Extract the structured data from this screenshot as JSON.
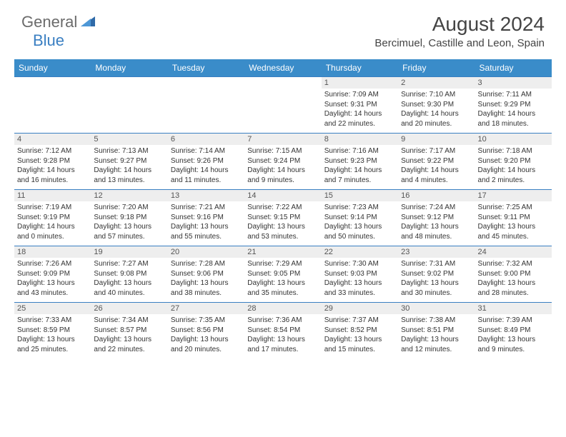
{
  "logo": {
    "text1": "General",
    "text2": "Blue"
  },
  "title": "August 2024",
  "location": "Bercimuel, Castille and Leon, Spain",
  "colors": {
    "header_bg": "#3a8cc9",
    "header_text": "#ffffff",
    "daynum_bg": "#eeeeee",
    "border": "#3a7fc2",
    "logo_gray": "#6b6b6b",
    "logo_blue": "#3a7fc2",
    "page_bg": "#ffffff"
  },
  "days_of_week": [
    "Sunday",
    "Monday",
    "Tuesday",
    "Wednesday",
    "Thursday",
    "Friday",
    "Saturday"
  ],
  "weeks": [
    [
      {
        "n": "",
        "sunrise": "",
        "sunset": "",
        "daylight1": "",
        "daylight2": "",
        "empty": true
      },
      {
        "n": "",
        "sunrise": "",
        "sunset": "",
        "daylight1": "",
        "daylight2": "",
        "empty": true
      },
      {
        "n": "",
        "sunrise": "",
        "sunset": "",
        "daylight1": "",
        "daylight2": "",
        "empty": true
      },
      {
        "n": "",
        "sunrise": "",
        "sunset": "",
        "daylight1": "",
        "daylight2": "",
        "empty": true
      },
      {
        "n": "1",
        "sunrise": "Sunrise: 7:09 AM",
        "sunset": "Sunset: 9:31 PM",
        "daylight1": "Daylight: 14 hours",
        "daylight2": "and 22 minutes."
      },
      {
        "n": "2",
        "sunrise": "Sunrise: 7:10 AM",
        "sunset": "Sunset: 9:30 PM",
        "daylight1": "Daylight: 14 hours",
        "daylight2": "and 20 minutes."
      },
      {
        "n": "3",
        "sunrise": "Sunrise: 7:11 AM",
        "sunset": "Sunset: 9:29 PM",
        "daylight1": "Daylight: 14 hours",
        "daylight2": "and 18 minutes."
      }
    ],
    [
      {
        "n": "4",
        "sunrise": "Sunrise: 7:12 AM",
        "sunset": "Sunset: 9:28 PM",
        "daylight1": "Daylight: 14 hours",
        "daylight2": "and 16 minutes."
      },
      {
        "n": "5",
        "sunrise": "Sunrise: 7:13 AM",
        "sunset": "Sunset: 9:27 PM",
        "daylight1": "Daylight: 14 hours",
        "daylight2": "and 13 minutes."
      },
      {
        "n": "6",
        "sunrise": "Sunrise: 7:14 AM",
        "sunset": "Sunset: 9:26 PM",
        "daylight1": "Daylight: 14 hours",
        "daylight2": "and 11 minutes."
      },
      {
        "n": "7",
        "sunrise": "Sunrise: 7:15 AM",
        "sunset": "Sunset: 9:24 PM",
        "daylight1": "Daylight: 14 hours",
        "daylight2": "and 9 minutes."
      },
      {
        "n": "8",
        "sunrise": "Sunrise: 7:16 AM",
        "sunset": "Sunset: 9:23 PM",
        "daylight1": "Daylight: 14 hours",
        "daylight2": "and 7 minutes."
      },
      {
        "n": "9",
        "sunrise": "Sunrise: 7:17 AM",
        "sunset": "Sunset: 9:22 PM",
        "daylight1": "Daylight: 14 hours",
        "daylight2": "and 4 minutes."
      },
      {
        "n": "10",
        "sunrise": "Sunrise: 7:18 AM",
        "sunset": "Sunset: 9:20 PM",
        "daylight1": "Daylight: 14 hours",
        "daylight2": "and 2 minutes."
      }
    ],
    [
      {
        "n": "11",
        "sunrise": "Sunrise: 7:19 AM",
        "sunset": "Sunset: 9:19 PM",
        "daylight1": "Daylight: 14 hours",
        "daylight2": "and 0 minutes."
      },
      {
        "n": "12",
        "sunrise": "Sunrise: 7:20 AM",
        "sunset": "Sunset: 9:18 PM",
        "daylight1": "Daylight: 13 hours",
        "daylight2": "and 57 minutes."
      },
      {
        "n": "13",
        "sunrise": "Sunrise: 7:21 AM",
        "sunset": "Sunset: 9:16 PM",
        "daylight1": "Daylight: 13 hours",
        "daylight2": "and 55 minutes."
      },
      {
        "n": "14",
        "sunrise": "Sunrise: 7:22 AM",
        "sunset": "Sunset: 9:15 PM",
        "daylight1": "Daylight: 13 hours",
        "daylight2": "and 53 minutes."
      },
      {
        "n": "15",
        "sunrise": "Sunrise: 7:23 AM",
        "sunset": "Sunset: 9:14 PM",
        "daylight1": "Daylight: 13 hours",
        "daylight2": "and 50 minutes."
      },
      {
        "n": "16",
        "sunrise": "Sunrise: 7:24 AM",
        "sunset": "Sunset: 9:12 PM",
        "daylight1": "Daylight: 13 hours",
        "daylight2": "and 48 minutes."
      },
      {
        "n": "17",
        "sunrise": "Sunrise: 7:25 AM",
        "sunset": "Sunset: 9:11 PM",
        "daylight1": "Daylight: 13 hours",
        "daylight2": "and 45 minutes."
      }
    ],
    [
      {
        "n": "18",
        "sunrise": "Sunrise: 7:26 AM",
        "sunset": "Sunset: 9:09 PM",
        "daylight1": "Daylight: 13 hours",
        "daylight2": "and 43 minutes."
      },
      {
        "n": "19",
        "sunrise": "Sunrise: 7:27 AM",
        "sunset": "Sunset: 9:08 PM",
        "daylight1": "Daylight: 13 hours",
        "daylight2": "and 40 minutes."
      },
      {
        "n": "20",
        "sunrise": "Sunrise: 7:28 AM",
        "sunset": "Sunset: 9:06 PM",
        "daylight1": "Daylight: 13 hours",
        "daylight2": "and 38 minutes."
      },
      {
        "n": "21",
        "sunrise": "Sunrise: 7:29 AM",
        "sunset": "Sunset: 9:05 PM",
        "daylight1": "Daylight: 13 hours",
        "daylight2": "and 35 minutes."
      },
      {
        "n": "22",
        "sunrise": "Sunrise: 7:30 AM",
        "sunset": "Sunset: 9:03 PM",
        "daylight1": "Daylight: 13 hours",
        "daylight2": "and 33 minutes."
      },
      {
        "n": "23",
        "sunrise": "Sunrise: 7:31 AM",
        "sunset": "Sunset: 9:02 PM",
        "daylight1": "Daylight: 13 hours",
        "daylight2": "and 30 minutes."
      },
      {
        "n": "24",
        "sunrise": "Sunrise: 7:32 AM",
        "sunset": "Sunset: 9:00 PM",
        "daylight1": "Daylight: 13 hours",
        "daylight2": "and 28 minutes."
      }
    ],
    [
      {
        "n": "25",
        "sunrise": "Sunrise: 7:33 AM",
        "sunset": "Sunset: 8:59 PM",
        "daylight1": "Daylight: 13 hours",
        "daylight2": "and 25 minutes."
      },
      {
        "n": "26",
        "sunrise": "Sunrise: 7:34 AM",
        "sunset": "Sunset: 8:57 PM",
        "daylight1": "Daylight: 13 hours",
        "daylight2": "and 22 minutes."
      },
      {
        "n": "27",
        "sunrise": "Sunrise: 7:35 AM",
        "sunset": "Sunset: 8:56 PM",
        "daylight1": "Daylight: 13 hours",
        "daylight2": "and 20 minutes."
      },
      {
        "n": "28",
        "sunrise": "Sunrise: 7:36 AM",
        "sunset": "Sunset: 8:54 PM",
        "daylight1": "Daylight: 13 hours",
        "daylight2": "and 17 minutes."
      },
      {
        "n": "29",
        "sunrise": "Sunrise: 7:37 AM",
        "sunset": "Sunset: 8:52 PM",
        "daylight1": "Daylight: 13 hours",
        "daylight2": "and 15 minutes."
      },
      {
        "n": "30",
        "sunrise": "Sunrise: 7:38 AM",
        "sunset": "Sunset: 8:51 PM",
        "daylight1": "Daylight: 13 hours",
        "daylight2": "and 12 minutes."
      },
      {
        "n": "31",
        "sunrise": "Sunrise: 7:39 AM",
        "sunset": "Sunset: 8:49 PM",
        "daylight1": "Daylight: 13 hours",
        "daylight2": "and 9 minutes."
      }
    ]
  ]
}
